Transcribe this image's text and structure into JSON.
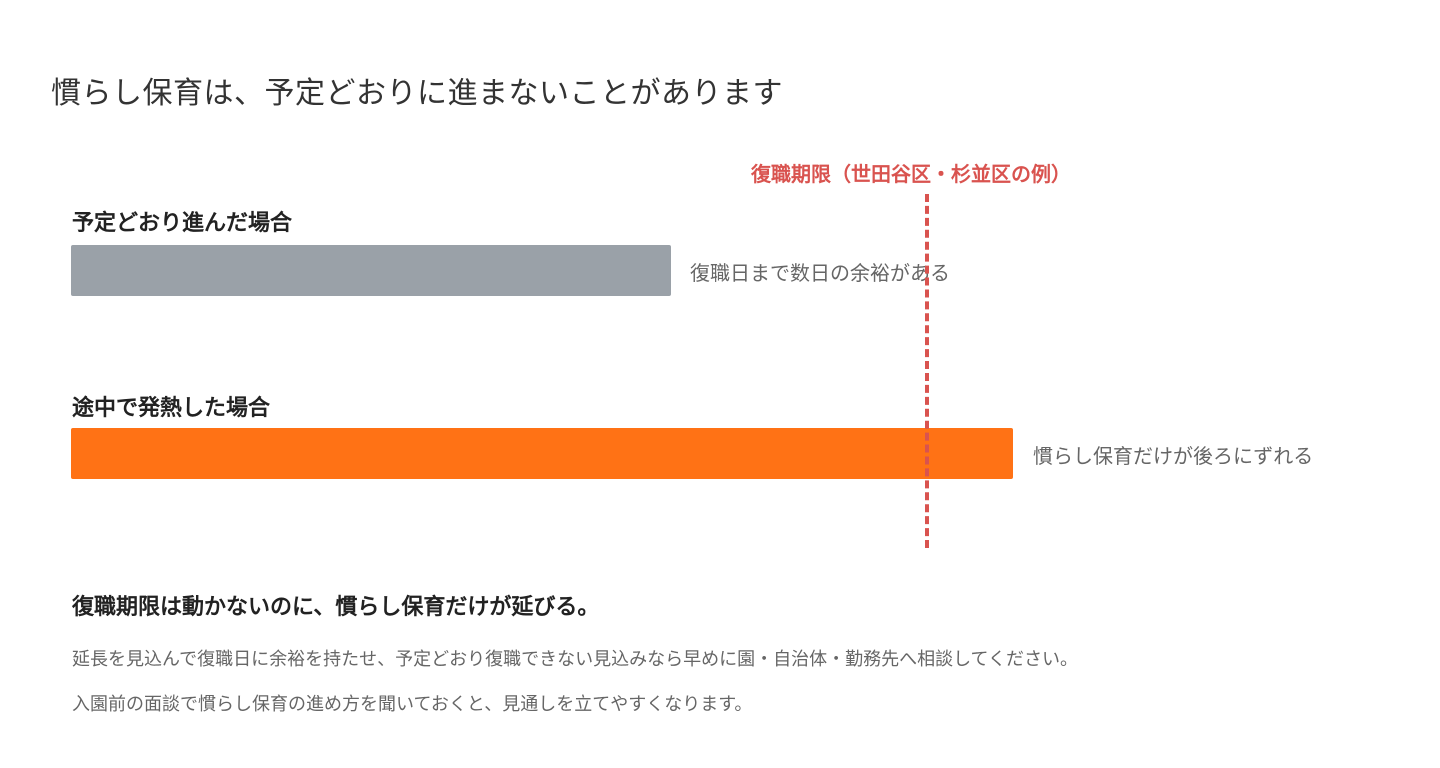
{
  "title": "慣らし保育は、予定どおりに進まないことがあります",
  "deadline": {
    "label": "復職期限（世田谷区・杉並区の例）",
    "color": "#d9534f"
  },
  "scenarios": [
    {
      "label": "予定どおり進んだ場合",
      "note": "復職日まで数日の余裕がある",
      "color": "#9aa1a8"
    },
    {
      "label": "途中で発熱した場合",
      "note": "慣らし保育だけが後ろにずれる",
      "color": "#ff7215"
    }
  ],
  "summary": {
    "heading": "復職期限は動かないのに、慣らし保育だけが延びる。",
    "lines": [
      "延長を見込んで復職日に余裕を持たせ、予定どおり復職できない見込みなら早めに園・自治体・勤務先へ相談してください。",
      "入園前の面談で慣らし保育の進め方を聞いておくと、見通しを立てやすくなります。"
    ]
  }
}
